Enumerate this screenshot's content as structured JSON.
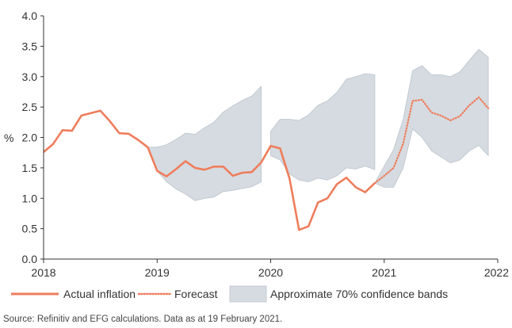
{
  "chart_data": {
    "type": "line",
    "ylabel": "%",
    "ylim": [
      0,
      4
    ],
    "yticks": [
      "0.0",
      "0.5",
      "1.0",
      "1.5",
      "2.0",
      "2.5",
      "3.0",
      "3.5",
      "4.0"
    ],
    "xlim": [
      2018,
      2022
    ],
    "xticks": [
      "2018",
      "2019",
      "2020",
      "2021",
      "2022"
    ],
    "grid": false,
    "legend_position": "bottom",
    "colors": {
      "actual": "#ef7d5c",
      "forecast": "#ef7d5c",
      "band": "#d5dbe0",
      "band_edge": "#bcc4cb",
      "axis": "#333333"
    },
    "series": [
      {
        "name": "Actual inflation",
        "style": "solid",
        "points": [
          [
            2018.0,
            1.76
          ],
          [
            2018.083,
            1.89
          ],
          [
            2018.167,
            2.12
          ],
          [
            2018.25,
            2.11
          ],
          [
            2018.333,
            2.36
          ],
          [
            2018.417,
            2.4
          ],
          [
            2018.5,
            2.44
          ],
          [
            2018.583,
            2.27
          ],
          [
            2018.667,
            2.07
          ],
          [
            2018.75,
            2.06
          ],
          [
            2018.833,
            1.96
          ],
          [
            2018.917,
            1.84
          ],
          [
            2019.0,
            1.45
          ],
          [
            2019.083,
            1.36
          ],
          [
            2019.167,
            1.48
          ],
          [
            2019.25,
            1.61
          ],
          [
            2019.333,
            1.5
          ],
          [
            2019.417,
            1.47
          ],
          [
            2019.5,
            1.52
          ],
          [
            2019.583,
            1.52
          ],
          [
            2019.667,
            1.37
          ],
          [
            2019.75,
            1.42
          ],
          [
            2019.833,
            1.43
          ],
          [
            2019.917,
            1.59
          ],
          [
            2020.0,
            1.86
          ],
          [
            2020.083,
            1.82
          ],
          [
            2020.167,
            1.32
          ],
          [
            2020.25,
            0.48
          ],
          [
            2020.333,
            0.54
          ],
          [
            2020.417,
            0.93
          ],
          [
            2020.5,
            1.0
          ],
          [
            2020.583,
            1.23
          ],
          [
            2020.667,
            1.34
          ],
          [
            2020.75,
            1.18
          ],
          [
            2020.833,
            1.1
          ],
          [
            2020.917,
            1.25
          ]
        ]
      },
      {
        "name": "Forecast",
        "style": "dotted",
        "points": [
          [
            2020.917,
            1.25
          ],
          [
            2021.0,
            1.37
          ],
          [
            2021.083,
            1.5
          ],
          [
            2021.167,
            1.9
          ],
          [
            2021.25,
            2.6
          ],
          [
            2021.333,
            2.62
          ],
          [
            2021.417,
            2.41
          ],
          [
            2021.5,
            2.36
          ],
          [
            2021.583,
            2.28
          ],
          [
            2021.667,
            2.35
          ],
          [
            2021.75,
            2.53
          ],
          [
            2021.833,
            2.66
          ],
          [
            2021.917,
            2.48
          ]
        ]
      }
    ],
    "bands": [
      {
        "name": "Approximate 70% confidence bands",
        "x": [
          2018.917,
          2019.0,
          2019.083,
          2019.167,
          2019.25,
          2019.333,
          2019.417,
          2019.5,
          2019.583,
          2019.667,
          2019.75,
          2019.833,
          2019.917
        ],
        "upper": [
          1.84,
          1.84,
          1.88,
          1.97,
          2.07,
          2.05,
          2.16,
          2.25,
          2.42,
          2.52,
          2.61,
          2.68,
          2.84
        ],
        "lower": [
          1.84,
          1.45,
          1.27,
          1.15,
          1.07,
          0.96,
          1.0,
          1.02,
          1.11,
          1.13,
          1.16,
          1.19,
          1.27
        ]
      },
      {
        "name": "Approximate 70% confidence bands",
        "x": [
          2020.0,
          2020.083,
          2020.167,
          2020.25,
          2020.333,
          2020.417,
          2020.5,
          2020.583,
          2020.667,
          2020.75,
          2020.833,
          2020.917
        ],
        "upper": [
          2.1,
          2.3,
          2.3,
          2.28,
          2.37,
          2.53,
          2.6,
          2.74,
          2.96,
          3.0,
          3.05,
          3.03
        ],
        "lower": [
          1.7,
          1.63,
          1.4,
          1.3,
          1.27,
          1.33,
          1.3,
          1.37,
          1.5,
          1.48,
          1.53,
          1.47
        ]
      },
      {
        "name": "Approximate 70% confidence bands",
        "x": [
          2020.917,
          2021.0,
          2021.083,
          2021.167,
          2021.25,
          2021.333,
          2021.417,
          2021.5,
          2021.583,
          2021.667,
          2021.75,
          2021.833,
          2021.917
        ],
        "upper": [
          1.25,
          1.53,
          1.8,
          2.3,
          3.1,
          3.18,
          3.03,
          3.03,
          3.0,
          3.08,
          3.27,
          3.45,
          3.32
        ],
        "lower": [
          1.25,
          1.18,
          1.18,
          1.5,
          2.14,
          2.0,
          1.78,
          1.68,
          1.58,
          1.63,
          1.78,
          1.87,
          1.7
        ]
      }
    ],
    "legend": [
      "Actual inflation",
      "Forecast",
      "Approximate 70% confidence bands"
    ]
  },
  "source": "Source: Refinitiv and EFG calculations. Data as at 19 February 2021."
}
